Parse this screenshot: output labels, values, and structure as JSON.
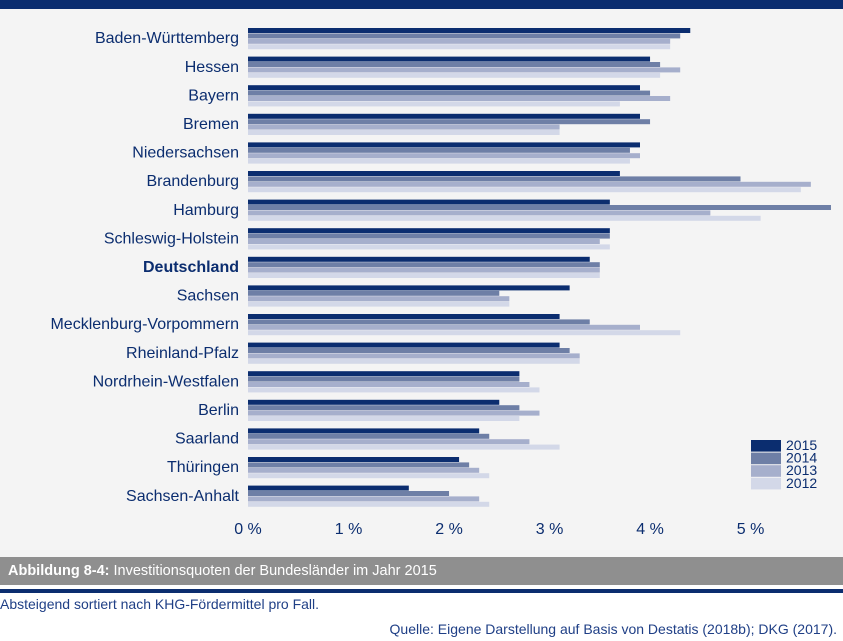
{
  "caption": {
    "label": "Abbildung 8-4:",
    "text": " Investitionsquoten der Bundesländer im Jahr 2015"
  },
  "note": "Absteigend sortiert nach KHG-Fördermittel pro Fall.",
  "source": "Quelle: Eigene Darstellung auf Basis von Destatis (2018b); DKG (2017).",
  "colors": {
    "2015": "#0b2d6f",
    "2014": "#6e7fa6",
    "2013": "#a6afcc",
    "2012": "#d3d8e8",
    "accent": "#0b2d6f",
    "caption_bg": "#8f8f8f"
  },
  "chart_data": {
    "type": "bar",
    "orientation": "horizontal",
    "categories": [
      "Baden-Württemberg",
      "Hessen",
      "Bayern",
      "Bremen",
      "Niedersachsen",
      "Brandenburg",
      "Hamburg",
      "Schleswig-Holstein",
      "Deutschland",
      "Sachsen",
      "Mecklenburg-Vorpommern",
      "Rheinland-Pfalz",
      "Nordrhein-Westfalen",
      "Berlin",
      "Saarland",
      "Thüringen",
      "Sachsen-Anhalt"
    ],
    "highlight_category": "Deutschland",
    "series": [
      {
        "name": "2015",
        "values": [
          4.4,
          4.0,
          3.9,
          3.9,
          3.9,
          3.7,
          3.6,
          3.6,
          3.4,
          3.2,
          3.1,
          3.1,
          2.7,
          2.5,
          2.3,
          2.1,
          1.6
        ]
      },
      {
        "name": "2014",
        "values": [
          4.3,
          4.1,
          4.0,
          4.0,
          3.8,
          4.9,
          5.8,
          3.6,
          3.5,
          2.5,
          3.4,
          3.2,
          2.7,
          2.7,
          2.4,
          2.2,
          2.0
        ]
      },
      {
        "name": "2013",
        "values": [
          4.2,
          4.3,
          4.2,
          3.1,
          3.9,
          5.6,
          4.6,
          3.5,
          3.5,
          2.6,
          3.9,
          3.3,
          2.8,
          2.9,
          2.8,
          2.3,
          2.3
        ]
      },
      {
        "name": "2012",
        "values": [
          4.2,
          4.1,
          3.7,
          3.1,
          3.8,
          5.5,
          5.1,
          3.6,
          3.5,
          2.6,
          4.3,
          3.3,
          2.9,
          2.7,
          3.1,
          2.4,
          2.4
        ]
      }
    ],
    "xticks": [
      "0 %",
      "1 %",
      "2 %",
      "3 %",
      "4 %",
      "5 %"
    ],
    "xlim": [
      0,
      5.85
    ],
    "xlabel": "",
    "ylabel": "",
    "legend": [
      "2015",
      "2014",
      "2013",
      "2012"
    ],
    "legend_position": "bottom-right",
    "grid": false
  }
}
